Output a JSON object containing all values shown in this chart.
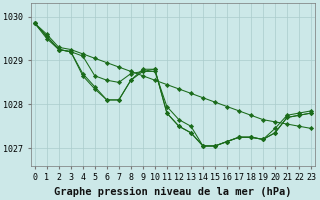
{
  "title": "Graphe pression niveau de la mer (hPa)",
  "bg_color": "#cce8e8",
  "grid_color": "#aacccc",
  "line_color": "#1a6b1a",
  "marker_color": "#1a6b1a",
  "x_ticks": [
    0,
    1,
    2,
    3,
    4,
    5,
    6,
    7,
    8,
    9,
    10,
    11,
    12,
    13,
    14,
    15,
    16,
    17,
    18,
    19,
    20,
    21,
    22,
    23
  ],
  "ylim": [
    1026.6,
    1030.3
  ],
  "yticks": [
    1027,
    1028,
    1029,
    1030
  ],
  "series": [
    [
      1029.85,
      1029.6,
      1029.3,
      1029.25,
      1029.15,
      1029.05,
      1028.95,
      1028.85,
      1028.75,
      1028.65,
      1028.55,
      1028.45,
      1028.35,
      1028.25,
      1028.15,
      1028.05,
      1027.95,
      1027.85,
      1027.75,
      1027.65,
      1027.6,
      1027.55,
      1027.5,
      1027.45
    ],
    [
      1029.85,
      1029.55,
      1029.25,
      1029.2,
      1028.7,
      1028.4,
      1028.1,
      1028.1,
      1028.55,
      1028.75,
      1028.8,
      1027.8,
      1027.5,
      1027.35,
      1027.05,
      1027.05,
      1027.15,
      1027.25,
      1027.25,
      1027.2,
      1027.35,
      1027.7,
      1027.75,
      1027.8
    ],
    [
      1029.85,
      1029.5,
      1029.25,
      1029.2,
      1028.65,
      1028.35,
      1028.1,
      1028.1,
      1028.55,
      1028.8,
      1028.8,
      1027.8,
      1027.5,
      1027.35,
      1027.05,
      1027.05,
      1027.15,
      1027.25,
      1027.25,
      1027.2,
      1027.35,
      1027.7,
      1027.75,
      1027.8
    ],
    [
      1029.85,
      1029.55,
      1029.25,
      1029.2,
      1029.1,
      1028.65,
      1028.55,
      1028.5,
      1028.7,
      1028.75,
      1028.75,
      1027.95,
      1027.65,
      1027.5,
      1027.05,
      1027.05,
      1027.15,
      1027.25,
      1027.25,
      1027.2,
      1027.45,
      1027.75,
      1027.8,
      1027.85
    ]
  ],
  "title_fontsize": 7.5,
  "tick_fontsize": 6,
  "figsize": [
    3.2,
    2.0
  ],
  "dpi": 100,
  "marker_size": 2.2,
  "linewidth": 0.75
}
